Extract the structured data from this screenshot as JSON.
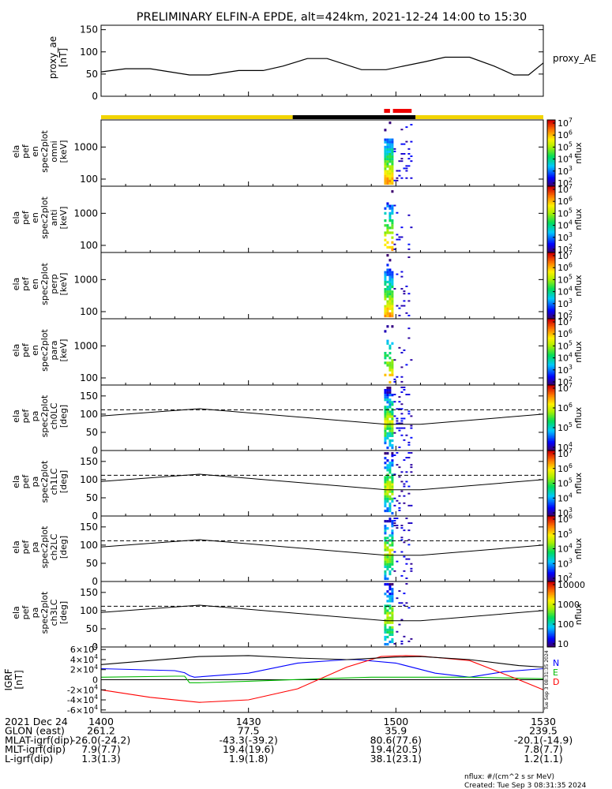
{
  "title": "PRELIMINARY ELFIN-A EPDE, alt=424km, 2021-12-24 14:00 to 15:30",
  "colors": {
    "line": "#000000",
    "orbit_day": "#f2d400",
    "orbit_night": "#000000",
    "science_bar": "#ee0000",
    "grf_n": "#0000ff",
    "grf_e": "#00bb00",
    "grf_d": "#ff0000"
  },
  "chart_data": [
    {
      "id": "proxy_ae",
      "type": "line",
      "ylabel": [
        "proxy_ae",
        "[nT]"
      ],
      "ylim": [
        0,
        160
      ],
      "yticks": [
        0,
        50,
        100,
        150
      ],
      "legend": "proxy_AE",
      "series": [
        {
          "name": "proxy_AE",
          "x": [
            0,
            5,
            10,
            18,
            22,
            28,
            33,
            37,
            42,
            46,
            53,
            58,
            66,
            70,
            75,
            80,
            84,
            87,
            90
          ],
          "y": [
            55,
            62,
            62,
            48,
            48,
            58,
            58,
            68,
            85,
            85,
            60,
            60,
            78,
            88,
            88,
            68,
            48,
            48,
            75
          ]
        }
      ]
    },
    {
      "id": "status_bar",
      "type": "bar",
      "segments": [
        {
          "from": 0,
          "to": 39,
          "state": "day"
        },
        {
          "from": 39,
          "to": 64,
          "state": "night"
        },
        {
          "from": 64,
          "to": 90,
          "state": "day"
        }
      ],
      "science_zones": [
        [
          57.6,
          58.8
        ],
        [
          59.4,
          63.2
        ]
      ]
    },
    {
      "id": "omni",
      "type": "heatmap",
      "ylabel": [
        "ela",
        "pef",
        "en",
        "spec2plot",
        "omni",
        "[keV]"
      ],
      "scale": "log",
      "ylim": [
        60,
        7000
      ],
      "yticks": [
        100,
        1000
      ],
      "colorbar": {
        "label": "nflux",
        "ticks": [
          "10^2",
          "10^3",
          "10^4",
          "10^5",
          "10^6",
          "10^7"
        ]
      }
    },
    {
      "id": "anti",
      "type": "heatmap",
      "ylabel": [
        "ela",
        "pef",
        "en",
        "spec2plot",
        "anti",
        "[keV]"
      ],
      "scale": "log",
      "ylim": [
        60,
        7000
      ],
      "yticks": [
        100,
        1000
      ],
      "colorbar": {
        "label": "nflux",
        "ticks": [
          "10^2",
          "10^3",
          "10^4",
          "10^5",
          "10^6",
          "10^7"
        ]
      }
    },
    {
      "id": "perp",
      "type": "heatmap",
      "ylabel": [
        "ela",
        "pef",
        "en",
        "spec2plot",
        "perp",
        "[keV]"
      ],
      "scale": "log",
      "ylim": [
        60,
        7000
      ],
      "yticks": [
        100,
        1000
      ],
      "colorbar": {
        "label": "nflux",
        "ticks": [
          "10^2",
          "10^3",
          "10^4",
          "10^5",
          "10^6",
          "10^7"
        ]
      }
    },
    {
      "id": "para",
      "type": "heatmap",
      "ylabel": [
        "ela",
        "pef",
        "en",
        "spec2plot",
        "para",
        "[keV]"
      ],
      "scale": "log",
      "ylim": [
        60,
        7000
      ],
      "yticks": [
        100,
        1000
      ],
      "colorbar": {
        "label": "nflux",
        "ticks": [
          "10^2",
          "10^3",
          "10^4",
          "10^5",
          "10^6",
          "10^7"
        ]
      }
    },
    {
      "id": "ch0lc",
      "type": "heatmap",
      "ylabel": [
        "ela",
        "pef",
        "pa",
        "spec2plot",
        "ch0LC",
        "[deg]"
      ],
      "ylim": [
        0,
        180
      ],
      "yticks": [
        0,
        50,
        100,
        150
      ],
      "colorbar": {
        "label": "nflux",
        "ticks": [
          "10^4",
          "10^5",
          "10^6",
          "10^7"
        ]
      }
    },
    {
      "id": "ch1lc",
      "type": "heatmap",
      "ylabel": [
        "ela",
        "pef",
        "pa",
        "spec2plot",
        "ch1LC",
        "[deg]"
      ],
      "ylim": [
        0,
        180
      ],
      "yticks": [
        0,
        50,
        100,
        150
      ],
      "colorbar": {
        "label": "nflux",
        "ticks": [
          "10^3",
          "10^4",
          "10^5",
          "10^6",
          "10^7"
        ]
      }
    },
    {
      "id": "ch2lc",
      "type": "heatmap",
      "ylabel": [
        "ela",
        "pef",
        "pa",
        "spec2plot",
        "ch2LC",
        "[deg]"
      ],
      "ylim": [
        0,
        180
      ],
      "yticks": [
        0,
        50,
        100,
        150
      ],
      "colorbar": {
        "label": "nflux",
        "ticks": [
          "10^2",
          "10^3",
          "10^4",
          "10^5",
          "10^6"
        ]
      }
    },
    {
      "id": "ch3lc",
      "type": "heatmap",
      "ylabel": [
        "ela",
        "pef",
        "pa",
        "spec2plot",
        "ch3LC",
        "[deg]"
      ],
      "ylim": [
        0,
        180
      ],
      "yticks": [
        0,
        50,
        100,
        150
      ],
      "colorbar": {
        "label": "nflux",
        "ticks": [
          "10",
          "100",
          "1000",
          "10000"
        ]
      }
    },
    {
      "id": "igrf",
      "type": "line",
      "ylabel": [
        "IGRF",
        "[nT]"
      ],
      "ylim": [
        -65000,
        65000
      ],
      "yticks": [
        "-6×10^4",
        "-4×10^4",
        "-2×10^4",
        "0",
        "2×10^4",
        "4×10^4",
        "6×10^4"
      ],
      "series": [
        {
          "name": "N",
          "x": [
            0,
            15,
            17,
            18,
            19,
            30,
            40,
            50,
            52,
            60,
            68,
            75,
            82,
            90
          ],
          "y": [
            22000,
            18000,
            14000,
            8000,
            5000,
            13000,
            33000,
            40000,
            40000,
            33000,
            13000,
            5000,
            16000,
            22000
          ]
        },
        {
          "name": "E",
          "x": [
            0,
            15,
            17,
            18,
            20,
            30,
            45,
            55,
            65,
            75,
            85,
            90
          ],
          "y": [
            5000,
            7000,
            7000,
            -6000,
            -6000,
            -3000,
            2000,
            5000,
            5000,
            5000,
            3000,
            2000
          ]
        },
        {
          "name": "D",
          "x": [
            0,
            10,
            20,
            30,
            40,
            50,
            57,
            62,
            65,
            75,
            85,
            90
          ],
          "y": [
            -20000,
            -35000,
            -45000,
            -40000,
            -18000,
            25000,
            46000,
            48000,
            47000,
            38000,
            0,
            -20000
          ]
        },
        {
          "name": "total",
          "x": [
            0,
            10,
            20,
            30,
            40,
            50,
            60,
            65,
            75,
            85,
            90
          ],
          "y": [
            30000,
            38000,
            46000,
            48000,
            43000,
            40000,
            45000,
            46000,
            40000,
            28000,
            25000
          ]
        }
      ],
      "legend": [
        "N",
        "E",
        "D"
      ]
    }
  ],
  "x_axis": {
    "range_minutes": [
      0,
      90
    ],
    "rows": [
      {
        "label": "2021 Dec 24",
        "values": [
          "1400",
          "1430",
          "1500",
          "1530"
        ]
      },
      {
        "label": "GLON (east)",
        "values": [
          "261.2",
          "77.5",
          "35.9",
          "239.5"
        ]
      },
      {
        "label": "MLAT-igrf(dip)",
        "values": [
          "-26.0(-24.2)",
          "-43.3(-39.2)",
          "80.6(77.6)",
          "-20.1(-14.9)"
        ]
      },
      {
        "label": "MLT-igrf(dip)",
        "values": [
          "7.9(7.7)",
          "19.4(19.6)",
          "19.4(20.5)",
          "7.8(7.7)"
        ]
      },
      {
        "label": "L-igrf(dip)",
        "values": [
          "1.3(1.3)",
          "1.9(1.8)",
          "38.1(23.1)",
          "1.2(1.1)"
        ]
      }
    ]
  },
  "footer": {
    "nflux": "nflux: #/(cm^2 s sr MeV)",
    "created": "Created: Tue Sep  3 08:31:35 2024",
    "side_stamp": "Tue Sep  3 08:31:35 2024"
  }
}
